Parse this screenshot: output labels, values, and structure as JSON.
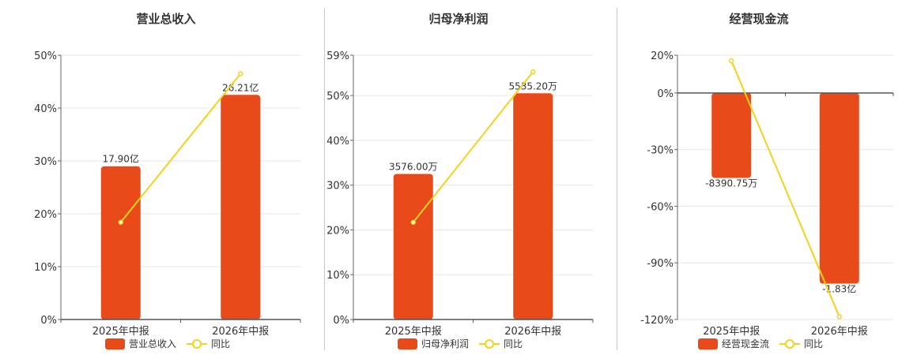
{
  "chart_data": [
    {
      "type": "bar",
      "title": "营业总收入",
      "categories": [
        "2025年中报",
        "2026年中报"
      ],
      "yticks": [
        "0%",
        "10%",
        "20%",
        "30%",
        "40%",
        "50%"
      ],
      "ylim": [
        0,
        50
      ],
      "series": [
        {
          "name": "营业总收入",
          "type": "bar",
          "values": [
            29,
            42.5
          ],
          "labels": [
            "17.90亿",
            "26.21亿"
          ],
          "color": "#e84a1a"
        },
        {
          "name": "同比",
          "type": "line",
          "values": [
            18.4,
            46.5
          ],
          "color": "#f2d21c"
        }
      ]
    },
    {
      "type": "bar",
      "title": "归母净利润",
      "categories": [
        "2025年中报",
        "2026年中报"
      ],
      "yticks": [
        "0%",
        "10%",
        "20%",
        "30%",
        "40%",
        "50%",
        "59%"
      ],
      "ylim": [
        0,
        59
      ],
      "series": [
        {
          "name": "归母净利润",
          "type": "bar",
          "values": [
            32.5,
            50.5
          ],
          "labels": [
            "3576.00万",
            "5535.20万"
          ],
          "color": "#e84a1a"
        },
        {
          "name": "同比",
          "type": "line",
          "values": [
            21.7,
            55.3
          ],
          "color": "#f2d21c"
        }
      ]
    },
    {
      "type": "bar",
      "title": "经营现金流",
      "categories": [
        "2025年中报",
        "2026年中报"
      ],
      "yticks": [
        "20%",
        "0%",
        "-30%",
        "-60%",
        "-90%",
        "-120%"
      ],
      "ylim": [
        -120,
        20
      ],
      "series": [
        {
          "name": "经营现金流",
          "type": "bar",
          "values": [
            -45,
            -101
          ],
          "labels": [
            "-8390.75万",
            "-1.83亿"
          ],
          "color": "#e84a1a"
        },
        {
          "name": "同比",
          "type": "line",
          "values": [
            17,
            -118.5
          ],
          "color": "#f2d21c"
        }
      ]
    }
  ]
}
